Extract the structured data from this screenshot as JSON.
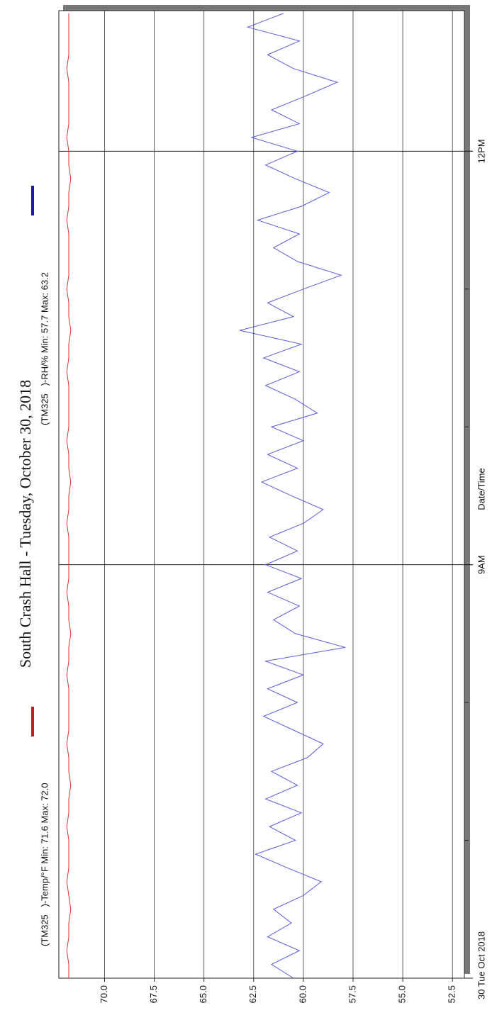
{
  "chart_data": {
    "type": "line",
    "title": "South Crash Hall - Tuesday, October 30, 2018",
    "x_label": "Date/Time",
    "x": [
      6,
      6.1,
      6.2,
      6.3,
      6.4,
      6.5,
      6.6,
      6.7,
      6.8,
      6.9,
      7,
      7.1,
      7.2,
      7.3,
      7.4,
      7.5,
      7.6,
      7.7,
      7.8,
      7.9,
      8,
      8.1,
      8.2,
      8.3,
      8.4,
      8.5,
      8.6,
      8.7,
      8.8,
      8.9,
      9,
      9.1,
      9.2,
      9.3,
      9.4,
      9.5,
      9.6,
      9.7,
      9.8,
      9.9,
      10,
      10.1,
      10.2,
      10.3,
      10.4,
      10.5,
      10.6,
      10.7,
      10.8,
      10.9,
      11,
      11.1,
      11.2,
      11.3,
      11.4,
      11.5,
      11.6,
      11.7,
      11.8,
      11.9,
      12,
      12.1,
      12.2,
      12.3,
      12.4,
      12.5,
      12.6,
      12.7,
      12.8,
      12.9,
      13
    ],
    "series": [
      {
        "name": "(TM325   )-Temp/°F Min: 71.6 Max: 72.0",
        "color": "#e03030",
        "values": [
          71.8,
          71.8,
          71.9,
          71.8,
          71.8,
          71.7,
          71.8,
          71.9,
          71.8,
          71.8,
          71.8,
          71.9,
          71.8,
          71.8,
          71.7,
          71.8,
          71.8,
          71.9,
          71.8,
          71.8,
          71.8,
          71.8,
          71.9,
          71.8,
          71.8,
          71.7,
          71.8,
          71.8,
          71.9,
          71.8,
          71.8,
          71.8,
          71.8,
          71.9,
          71.8,
          71.8,
          71.7,
          71.8,
          71.8,
          71.9,
          71.8,
          71.8,
          71.8,
          71.8,
          71.9,
          71.8,
          71.8,
          71.7,
          71.8,
          71.8,
          71.9,
          71.8,
          71.8,
          71.8,
          71.8,
          71.9,
          71.8,
          71.8,
          71.7,
          71.8,
          71.8,
          71.9,
          71.8,
          71.8,
          71.8,
          71.8,
          71.9,
          71.8,
          71.8,
          71.8,
          71.8
        ]
      },
      {
        "name": "(TM325   )-RH/% Min: 57.7 Max: 63.2",
        "color": "#5a5ae0",
        "values": [
          60.5,
          61.6,
          60.2,
          61.8,
          60.6,
          61.5,
          60.0,
          59.1,
          60.8,
          62.4,
          60.4,
          61.7,
          60.1,
          61.9,
          60.3,
          61.6,
          59.8,
          59.0,
          60.5,
          62.0,
          60.3,
          61.8,
          60.0,
          61.9,
          57.9,
          60.4,
          61.5,
          60.2,
          61.8,
          60.1,
          61.9,
          60.3,
          61.7,
          60.0,
          59.0,
          60.6,
          62.1,
          60.3,
          61.8,
          60.0,
          61.6,
          59.3,
          60.4,
          61.9,
          60.2,
          62.0,
          60.1,
          63.2,
          60.5,
          61.8,
          60.0,
          58.1,
          60.3,
          61.5,
          60.2,
          62.3,
          60.1,
          58.7,
          60.4,
          61.9,
          60.3,
          62.6,
          60.2,
          61.6,
          59.9,
          58.3,
          60.5,
          61.8,
          60.2,
          62.8,
          61.0
        ]
      }
    ],
    "legend_colors": [
      "#c02020",
      "#1c1caa"
    ],
    "xlim": [
      6,
      13.02
    ],
    "xticks": [
      {
        "value": 6,
        "label": "30 Tue Oct 2018"
      },
      {
        "value": 9,
        "label": "9AM"
      },
      {
        "value": 12,
        "label": "12PM"
      }
    ],
    "x_minor_ticks": [
      7,
      8,
      10,
      11
    ],
    "x_grid": [
      9,
      12
    ],
    "ylim": [
      51.9,
      72.3
    ],
    "yticks": [
      {
        "value": 52.5,
        "label": "52.5"
      },
      {
        "value": 55,
        "label": "55.0"
      },
      {
        "value": 57.5,
        "label": "57.5"
      },
      {
        "value": 60,
        "label": "60.0"
      },
      {
        "value": 62.5,
        "label": "62.5"
      },
      {
        "value": 65,
        "label": "65.0"
      },
      {
        "value": 67.5,
        "label": "67.5"
      },
      {
        "value": 70,
        "label": "70.0"
      }
    ],
    "grid": true
  }
}
